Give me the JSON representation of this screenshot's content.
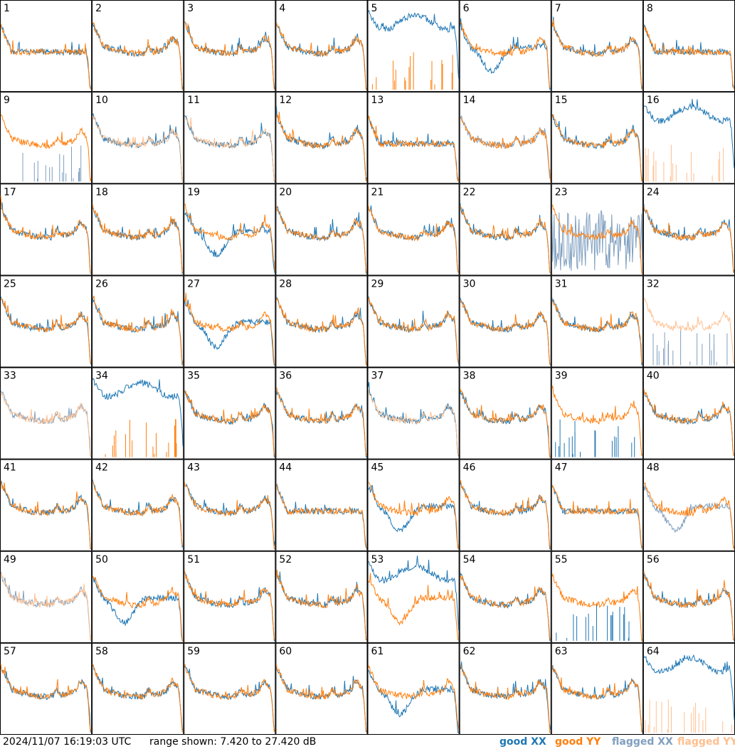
{
  "footer": {
    "timestamp": "2024/11/07 16:19:03 UTC",
    "range_text": "range shown: 7.420 to 27.420 dB"
  },
  "legend": [
    {
      "label": "good XX",
      "color": "#1f77b4"
    },
    {
      "label": "good YY",
      "color": "#ff7f0e"
    },
    {
      "label": "flagged XX",
      "color": "#7f9fbf"
    },
    {
      "label": "flagged YY",
      "color": "#ffbf8f"
    }
  ],
  "chart_data": {
    "type": "line",
    "grid_layout": {
      "rows": 8,
      "cols": 8
    },
    "range_db": [
      7.42,
      27.42
    ],
    "series_colors": {
      "good_xx": "#1f77b4",
      "good_yy": "#ff7f0e",
      "flagged_xx": "#7f9fbf",
      "flagged_yy": "#ffbf8f"
    },
    "panels": [
      {
        "label": "1",
        "xx": "good",
        "yy": "good",
        "yy_front": true,
        "xx_shape": "flat",
        "yy_shape": "flat"
      },
      {
        "label": "2",
        "xx": "good",
        "yy": "good",
        "yy_front": true,
        "xx_shape": "wavy",
        "yy_shape": "wavy"
      },
      {
        "label": "3",
        "xx": "good",
        "yy": "good",
        "yy_front": true,
        "xx_shape": "wavy",
        "yy_shape": "wavy"
      },
      {
        "label": "4",
        "xx": "good",
        "yy": "good",
        "yy_front": true,
        "xx_shape": "wavy",
        "yy_shape": "wavy"
      },
      {
        "label": "5",
        "xx": "good",
        "yy": "good",
        "yy_front": false,
        "xx_shape": "wavy_high",
        "yy_shape": "spikes"
      },
      {
        "label": "6",
        "xx": "good",
        "yy": "good",
        "yy_front": true,
        "xx_shape": "dip",
        "yy_shape": "wavy"
      },
      {
        "label": "7",
        "xx": "good",
        "yy": "good",
        "yy_front": true,
        "xx_shape": "wavy",
        "yy_shape": "wavy"
      },
      {
        "label": "8",
        "xx": "good",
        "yy": "good",
        "yy_front": true,
        "xx_shape": "flat",
        "yy_shape": "flat"
      },
      {
        "label": "9",
        "xx": "flagged",
        "yy": "good",
        "yy_front": true,
        "xx_shape": "spikes",
        "yy_shape": "wavy"
      },
      {
        "label": "10",
        "xx": "good",
        "yy": "flagged",
        "yy_front": true,
        "xx_shape": "wavy",
        "yy_shape": "wavy"
      },
      {
        "label": "11",
        "xx": "good",
        "yy": "flagged",
        "yy_front": true,
        "xx_shape": "wavy",
        "yy_shape": "wavy"
      },
      {
        "label": "12",
        "xx": "good",
        "yy": "good",
        "yy_front": true,
        "xx_shape": "wavy",
        "yy_shape": "wavy"
      },
      {
        "label": "13",
        "xx": "good",
        "yy": "good",
        "yy_front": true,
        "xx_shape": "flat",
        "yy_shape": "flat"
      },
      {
        "label": "14",
        "xx": "flagged",
        "yy": "good",
        "yy_front": true,
        "xx_shape": "wavy",
        "yy_shape": "wavy"
      },
      {
        "label": "15",
        "xx": "good",
        "yy": "good",
        "yy_front": true,
        "xx_shape": "wavy",
        "yy_shape": "wavy"
      },
      {
        "label": "16",
        "xx": "good",
        "yy": "flagged",
        "yy_front": false,
        "xx_shape": "wavy_high",
        "yy_shape": "spikes"
      },
      {
        "label": "17",
        "xx": "good",
        "yy": "good",
        "yy_front": true,
        "xx_shape": "wavy",
        "yy_shape": "wavy"
      },
      {
        "label": "18",
        "xx": "good",
        "yy": "good",
        "yy_front": true,
        "xx_shape": "wavy",
        "yy_shape": "wavy"
      },
      {
        "label": "19",
        "xx": "good",
        "yy": "good",
        "yy_front": true,
        "xx_shape": "dip",
        "yy_shape": "wavy"
      },
      {
        "label": "20",
        "xx": "good",
        "yy": "good",
        "yy_front": true,
        "xx_shape": "wavy",
        "yy_shape": "wavy"
      },
      {
        "label": "21",
        "xx": "good",
        "yy": "good",
        "yy_front": true,
        "xx_shape": "wavy",
        "yy_shape": "wavy"
      },
      {
        "label": "22",
        "xx": "good",
        "yy": "good",
        "yy_front": true,
        "xx_shape": "wavy",
        "yy_shape": "wavy"
      },
      {
        "label": "23",
        "xx": "flagged",
        "yy": "good",
        "yy_front": true,
        "xx_shape": "noise",
        "yy_shape": "wavy"
      },
      {
        "label": "24",
        "xx": "good",
        "yy": "good",
        "yy_front": true,
        "xx_shape": "wavy",
        "yy_shape": "wavy"
      },
      {
        "label": "25",
        "xx": "good",
        "yy": "good",
        "yy_front": true,
        "xx_shape": "wavy",
        "yy_shape": "wavy"
      },
      {
        "label": "26",
        "xx": "good",
        "yy": "good",
        "yy_front": true,
        "xx_shape": "wavy",
        "yy_shape": "wavy"
      },
      {
        "label": "27",
        "xx": "good",
        "yy": "good",
        "yy_front": true,
        "xx_shape": "dip",
        "yy_shape": "wavy"
      },
      {
        "label": "28",
        "xx": "good",
        "yy": "good",
        "yy_front": true,
        "xx_shape": "wavy",
        "yy_shape": "wavy"
      },
      {
        "label": "29",
        "xx": "good",
        "yy": "good",
        "yy_front": true,
        "xx_shape": "wavy",
        "yy_shape": "wavy"
      },
      {
        "label": "30",
        "xx": "good",
        "yy": "good",
        "yy_front": true,
        "xx_shape": "wavy",
        "yy_shape": "wavy"
      },
      {
        "label": "31",
        "xx": "good",
        "yy": "good",
        "yy_front": true,
        "xx_shape": "wavy",
        "yy_shape": "wavy"
      },
      {
        "label": "32",
        "xx": "flagged",
        "yy": "flagged",
        "yy_front": true,
        "xx_shape": "spikes",
        "yy_shape": "wavy"
      },
      {
        "label": "33",
        "xx": "flagged",
        "yy": "flagged",
        "yy_front": true,
        "xx_shape": "wavy",
        "yy_shape": "wavy"
      },
      {
        "label": "34",
        "xx": "good",
        "yy": "good",
        "yy_front": true,
        "xx_shape": "wavy_high",
        "yy_shape": "spikes"
      },
      {
        "label": "35",
        "xx": "good",
        "yy": "good",
        "yy_front": true,
        "xx_shape": "wavy",
        "yy_shape": "wavy"
      },
      {
        "label": "36",
        "xx": "good",
        "yy": "good",
        "yy_front": true,
        "xx_shape": "wavy",
        "yy_shape": "wavy"
      },
      {
        "label": "37",
        "xx": "good",
        "yy": "flagged",
        "yy_front": true,
        "xx_shape": "wavy",
        "yy_shape": "wavy"
      },
      {
        "label": "38",
        "xx": "good",
        "yy": "good",
        "yy_front": true,
        "xx_shape": "wavy",
        "yy_shape": "wavy"
      },
      {
        "label": "39",
        "xx": "good",
        "yy": "good",
        "yy_front": true,
        "xx_shape": "spikes",
        "yy_shape": "wavy"
      },
      {
        "label": "40",
        "xx": "good",
        "yy": "good",
        "yy_front": true,
        "xx_shape": "wavy",
        "yy_shape": "wavy"
      },
      {
        "label": "41",
        "xx": "good",
        "yy": "good",
        "yy_front": true,
        "xx_shape": "wavy",
        "yy_shape": "wavy"
      },
      {
        "label": "42",
        "xx": "good",
        "yy": "good",
        "yy_front": true,
        "xx_shape": "wavy",
        "yy_shape": "wavy"
      },
      {
        "label": "43",
        "xx": "good",
        "yy": "good",
        "yy_front": true,
        "xx_shape": "wavy",
        "yy_shape": "wavy"
      },
      {
        "label": "44",
        "xx": "good",
        "yy": "good",
        "yy_front": true,
        "xx_shape": "flat",
        "yy_shape": "flat"
      },
      {
        "label": "45",
        "xx": "good",
        "yy": "good",
        "yy_front": true,
        "xx_shape": "dip",
        "yy_shape": "wavy"
      },
      {
        "label": "46",
        "xx": "good",
        "yy": "good",
        "yy_front": true,
        "xx_shape": "wavy",
        "yy_shape": "wavy"
      },
      {
        "label": "47",
        "xx": "good",
        "yy": "good",
        "yy_front": true,
        "xx_shape": "flat",
        "yy_shape": "flat"
      },
      {
        "label": "48",
        "xx": "flagged",
        "yy": "good",
        "yy_front": true,
        "xx_shape": "dip",
        "yy_shape": "wavy"
      },
      {
        "label": "49",
        "xx": "flagged",
        "yy": "flagged",
        "yy_front": true,
        "xx_shape": "wavy",
        "yy_shape": "wavy"
      },
      {
        "label": "50",
        "xx": "good",
        "yy": "good",
        "yy_front": true,
        "xx_shape": "dip",
        "yy_shape": "wavy"
      },
      {
        "label": "51",
        "xx": "good",
        "yy": "good",
        "yy_front": true,
        "xx_shape": "wavy",
        "yy_shape": "wavy"
      },
      {
        "label": "52",
        "xx": "good",
        "yy": "good",
        "yy_front": true,
        "xx_shape": "wavy",
        "yy_shape": "wavy"
      },
      {
        "label": "53",
        "xx": "good",
        "yy": "good",
        "yy_front": true,
        "xx_shape": "wavy_high",
        "yy_shape": "dip"
      },
      {
        "label": "54",
        "xx": "good",
        "yy": "good",
        "yy_front": true,
        "xx_shape": "wavy",
        "yy_shape": "wavy"
      },
      {
        "label": "55",
        "xx": "good",
        "yy": "good",
        "yy_front": true,
        "xx_shape": "spikes",
        "yy_shape": "wavy"
      },
      {
        "label": "56",
        "xx": "good",
        "yy": "good",
        "yy_front": true,
        "xx_shape": "wavy",
        "yy_shape": "wavy"
      },
      {
        "label": "57",
        "xx": "good",
        "yy": "good",
        "yy_front": true,
        "xx_shape": "wavy",
        "yy_shape": "wavy"
      },
      {
        "label": "58",
        "xx": "good",
        "yy": "good",
        "yy_front": true,
        "xx_shape": "wavy",
        "yy_shape": "wavy"
      },
      {
        "label": "59",
        "xx": "good",
        "yy": "good",
        "yy_front": true,
        "xx_shape": "wavy",
        "yy_shape": "wavy"
      },
      {
        "label": "60",
        "xx": "good",
        "yy": "good",
        "yy_front": true,
        "xx_shape": "wavy",
        "yy_shape": "wavy"
      },
      {
        "label": "61",
        "xx": "good",
        "yy": "good",
        "yy_front": true,
        "xx_shape": "dip",
        "yy_shape": "wavy"
      },
      {
        "label": "62",
        "xx": "good",
        "yy": "good",
        "yy_front": true,
        "xx_shape": "wavy",
        "yy_shape": "wavy"
      },
      {
        "label": "63",
        "xx": "good",
        "yy": "good",
        "yy_front": true,
        "xx_shape": "wavy",
        "yy_shape": "wavy"
      },
      {
        "label": "64",
        "xx": "good",
        "yy": "flagged",
        "yy_front": false,
        "xx_shape": "wavy_high",
        "yy_shape": "spikes"
      }
    ]
  }
}
